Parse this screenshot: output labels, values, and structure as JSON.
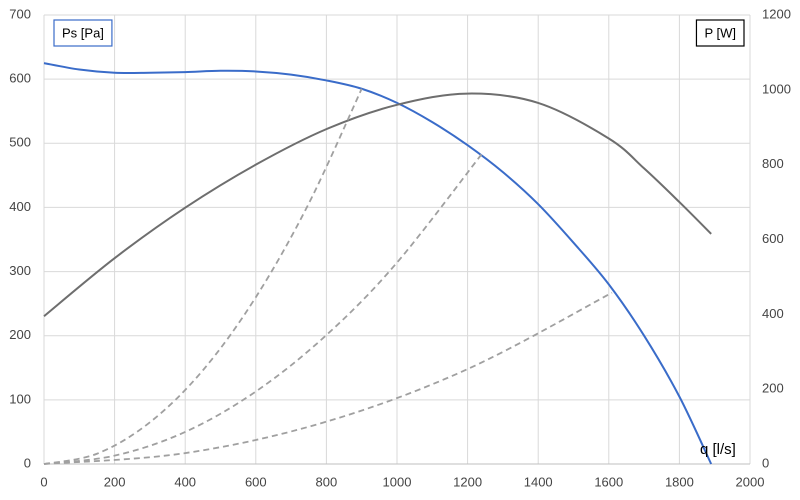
{
  "chart_data": {
    "type": "line",
    "x_label": "q [l/s]",
    "y_label": "Ps [Pa]",
    "y2_label": "P [W]",
    "xlim": [
      0,
      2000
    ],
    "xticks": [
      0,
      200,
      400,
      600,
      800,
      1000,
      1200,
      1400,
      1600,
      1800,
      2000
    ],
    "ylim": [
      0,
      700
    ],
    "yticks": [
      0,
      100,
      200,
      300,
      400,
      500,
      600,
      700
    ],
    "y2lim": [
      0,
      1200
    ],
    "y2ticks": [
      0,
      200,
      400,
      600,
      800,
      1000,
      1200
    ],
    "grid": true,
    "series": [
      {
        "color": "#3a6cc9",
        "axis": "y",
        "x": [
          0,
          100,
          200,
          300,
          400,
          500,
          600,
          700,
          800,
          900,
          1000,
          1100,
          1200,
          1300,
          1400,
          1500,
          1600,
          1700,
          1800,
          1890
        ],
        "values": [
          625,
          615,
          610,
          610,
          611,
          613,
          612,
          607,
          598,
          585,
          563,
          533,
          497,
          455,
          405,
          345,
          280,
          200,
          105,
          0
        ]
      },
      {
        "color": "#6e6e6e",
        "axis": "y2",
        "x": [
          0,
          200,
          400,
          600,
          800,
          1000,
          1200,
          1400,
          1600,
          1700,
          1800,
          1890
        ],
        "values": [
          395,
          550,
          685,
          800,
          895,
          960,
          990,
          965,
          870,
          790,
          700,
          615
        ]
      },
      {
        "color": "#a0a0a0",
        "axis": "y",
        "dashed": true,
        "x": [
          0,
          150,
          300,
          450,
          600,
          750,
          900
        ],
        "values": [
          0,
          16,
          65,
          146,
          260,
          406,
          585
        ]
      },
      {
        "color": "#a0a0a0",
        "axis": "y",
        "dashed": true,
        "x": [
          0,
          200,
          400,
          600,
          800,
          1000,
          1244
        ],
        "values": [
          0,
          13,
          50,
          113,
          201,
          314,
          486
        ]
      },
      {
        "color": "#a0a0a0",
        "axis": "y",
        "dashed": true,
        "x": [
          0,
          400,
          800,
          1200,
          1609
        ],
        "values": [
          0,
          17,
          66,
          148,
          267
        ]
      }
    ]
  }
}
